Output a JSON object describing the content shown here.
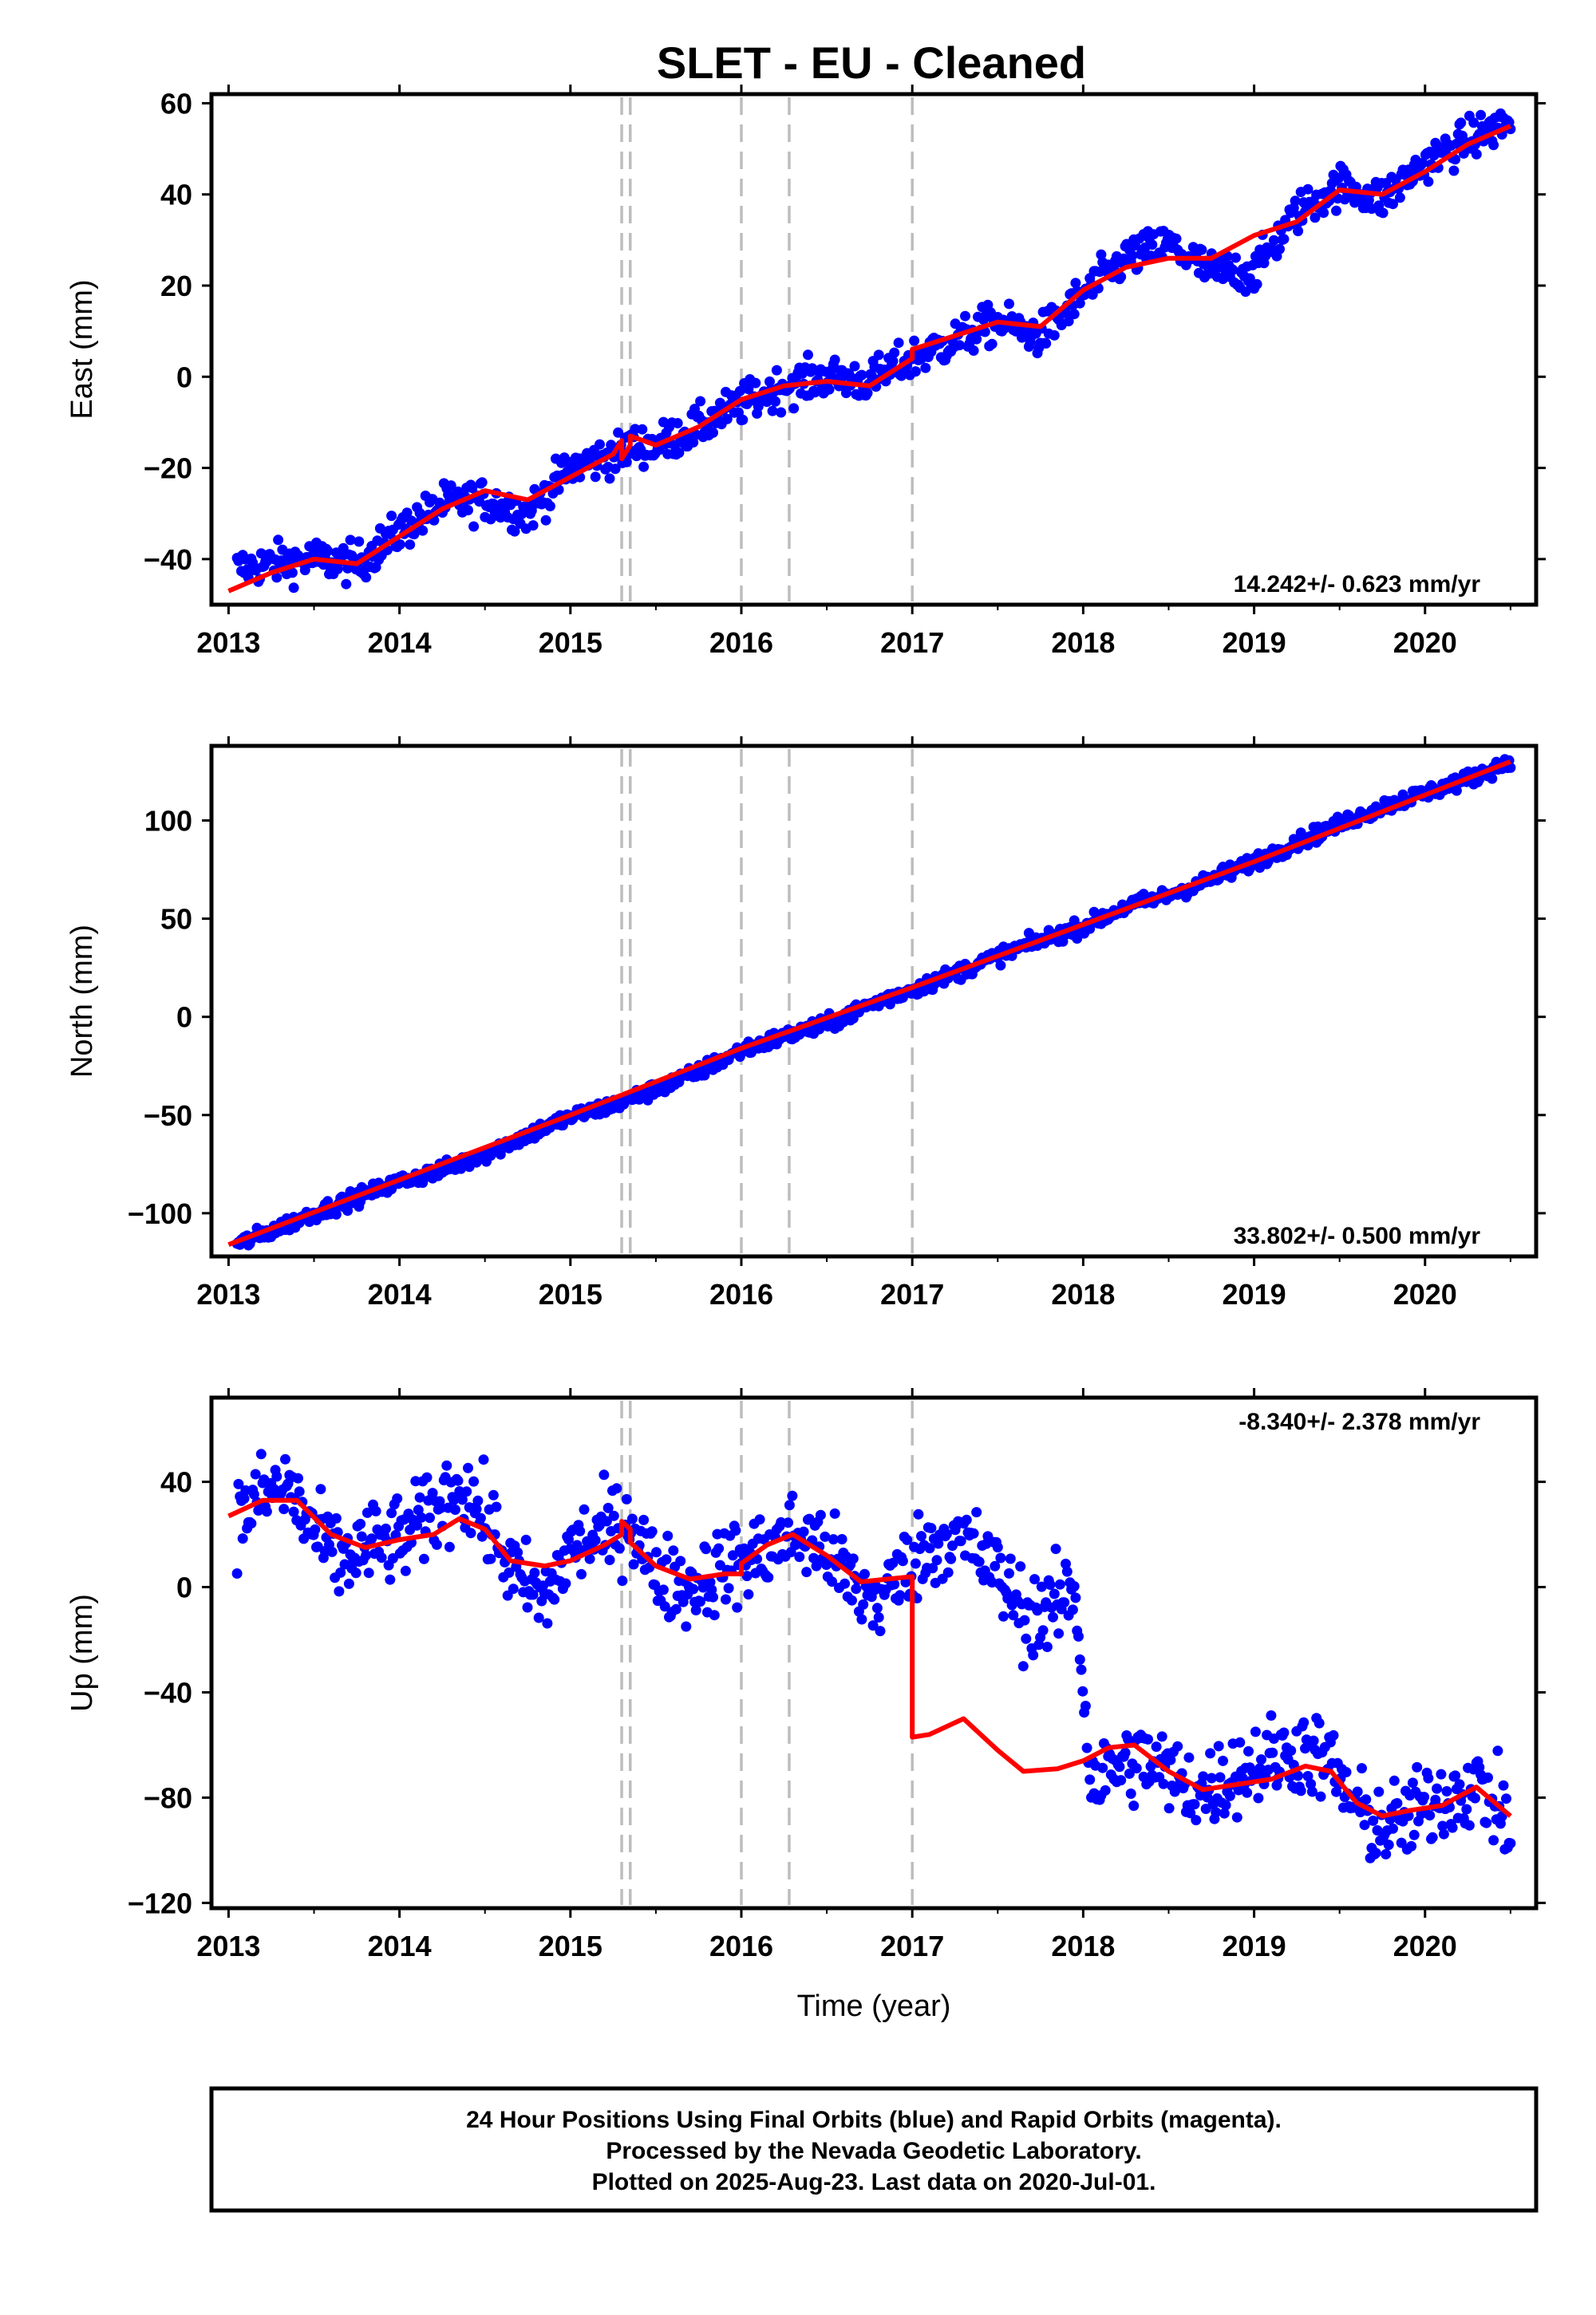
{
  "title": "SLET  - EU - Cleaned",
  "colors": {
    "points": "#0000ff",
    "model": "#ff0000",
    "steps": "#bdbdbd",
    "frame": "#000000"
  },
  "chart_data": [
    {
      "id": "east",
      "type": "scatter",
      "ylabel": "East (mm)",
      "xlim": [
        2012.9,
        2020.65
      ],
      "ylim": [
        -50,
        62
      ],
      "xticks": [
        "2013",
        "2014",
        "2015",
        "2016",
        "2017",
        "2018",
        "2019",
        "2020"
      ],
      "yticks": [
        -40,
        -20,
        0,
        20,
        40,
        60
      ],
      "rate_label": "14.242+/- 0.623 mm/yr",
      "rate_position": "bottom-right",
      "step_lines": [
        2015.3,
        2015.35,
        2016.0,
        2016.28,
        2017.0
      ],
      "series": [
        {
          "kind": "points",
          "x": [
            2013.05,
            2013.25,
            2013.5,
            2013.75,
            2014.0,
            2014.25,
            2014.5,
            2014.75,
            2015.0,
            2015.25,
            2015.3,
            2015.35,
            2015.5,
            2015.75,
            2016.0,
            2016.25,
            2016.5,
            2016.75,
            2017.0,
            2017.25,
            2017.5,
            2017.75,
            2018.0,
            2018.25,
            2018.5,
            2018.75,
            2019.0,
            2019.25,
            2019.5,
            2019.75,
            2020.0,
            2020.25,
            2020.5
          ],
          "y": [
            -42,
            -41,
            -40,
            -41,
            -34,
            -28,
            -27,
            -30,
            -20,
            -17,
            -17,
            -15,
            -15,
            -11,
            -6,
            -2,
            0,
            -1,
            4,
            8,
            12,
            9,
            18,
            26,
            29,
            23,
            23,
            36,
            42,
            39,
            47,
            52,
            56
          ]
        },
        {
          "kind": "model",
          "x": [
            2013.0,
            2013.25,
            2013.5,
            2013.75,
            2014.0,
            2014.25,
            2014.5,
            2014.75,
            2015.0,
            2015.25,
            2015.3,
            2015.3,
            2015.35,
            2015.35,
            2015.5,
            2015.75,
            2016.0,
            2016.25,
            2016.5,
            2016.75,
            2017.0,
            2017.0,
            2017.25,
            2017.5,
            2017.75,
            2018.0,
            2018.25,
            2018.5,
            2018.75,
            2019.0,
            2019.25,
            2019.5,
            2019.75,
            2020.0,
            2020.25,
            2020.5
          ],
          "y": [
            -47,
            -43,
            -40,
            -41,
            -35,
            -29,
            -25,
            -27,
            -22,
            -17,
            -14,
            -18,
            -15,
            -13,
            -15,
            -11,
            -5,
            -2,
            -1,
            -2,
            4,
            6,
            9,
            12,
            11,
            19,
            24,
            26,
            26,
            31,
            34,
            41,
            40,
            45,
            51,
            55
          ]
        }
      ]
    },
    {
      "id": "north",
      "type": "scatter",
      "ylabel": "North (mm)",
      "xlim": [
        2012.9,
        2020.65
      ],
      "ylim": [
        -122,
        138
      ],
      "xticks": [
        "2013",
        "2014",
        "2015",
        "2016",
        "2017",
        "2018",
        "2019",
        "2020"
      ],
      "yticks": [
        -100,
        -50,
        0,
        50,
        100
      ],
      "rate_label": "33.802+/- 0.500 mm/yr",
      "rate_position": "bottom-right",
      "step_lines": [
        2015.3,
        2015.35,
        2016.0,
        2016.28,
        2017.0
      ],
      "series": [
        {
          "kind": "points",
          "x": [
            2013.05,
            2013.25,
            2013.5,
            2013.75,
            2014.0,
            2014.25,
            2014.5,
            2014.75,
            2015.0,
            2015.25,
            2015.5,
            2015.75,
            2016.0,
            2016.25,
            2016.5,
            2016.75,
            2017.0,
            2017.25,
            2017.5,
            2017.75,
            2018.0,
            2018.25,
            2018.5,
            2018.75,
            2019.0,
            2019.25,
            2019.5,
            2019.75,
            2020.0,
            2020.25,
            2020.5
          ],
          "y": [
            -116,
            -109,
            -100,
            -92,
            -84,
            -78,
            -70,
            -60,
            -51,
            -45,
            -37,
            -28,
            -17,
            -10,
            -4,
            6,
            14,
            22,
            31,
            39,
            46,
            56,
            62,
            70,
            79,
            89,
            98,
            107,
            114,
            121,
            130
          ]
        },
        {
          "kind": "model",
          "x": [
            2013.0,
            2014.0,
            2015.0,
            2016.0,
            2017.0,
            2018.0,
            2019.0,
            2020.0,
            2020.5
          ],
          "y": [
            -116,
            -83,
            -50,
            -16,
            15,
            47,
            79,
            113,
            130
          ]
        }
      ]
    },
    {
      "id": "up",
      "type": "scatter",
      "ylabel": "Up (mm)",
      "xlabel": "Time (year)",
      "xlim": [
        2012.9,
        2020.65
      ],
      "ylim": [
        -122,
        72
      ],
      "xticks": [
        "2013",
        "2014",
        "2015",
        "2016",
        "2017",
        "2018",
        "2019",
        "2020"
      ],
      "yticks": [
        -120,
        -80,
        -40,
        0,
        40
      ],
      "rate_label": "-8.340+/- 2.378 mm/yr",
      "rate_position": "top-right",
      "step_lines": [
        2015.3,
        2015.35,
        2016.0,
        2016.28,
        2017.0
      ],
      "series": [
        {
          "kind": "points",
          "x": [
            2013.05,
            2013.2,
            2013.35,
            2013.5,
            2013.65,
            2013.8,
            2014.0,
            2014.2,
            2014.35,
            2014.55,
            2014.7,
            2014.85,
            2015.0,
            2015.2,
            2015.35,
            2015.5,
            2015.7,
            2015.9,
            2016.1,
            2016.3,
            2016.5,
            2016.65,
            2016.8,
            2017.0,
            2017.2,
            2017.35,
            2017.5,
            2017.65,
            2017.8,
            2017.95,
            2018.05,
            2018.2,
            2018.35,
            2018.5,
            2018.7,
            2018.9,
            2019.1,
            2019.3,
            2019.45,
            2019.6,
            2019.75,
            2019.9,
            2020.1,
            2020.3,
            2020.45,
            2020.5
          ],
          "y": [
            25,
            35,
            38,
            20,
            10,
            15,
            18,
            28,
            40,
            20,
            2,
            -5,
            15,
            20,
            26,
            5,
            0,
            8,
            12,
            20,
            15,
            0,
            -5,
            10,
            20,
            15,
            5,
            -10,
            -10,
            0,
            -75,
            -68,
            -65,
            -72,
            -78,
            -70,
            -65,
            -62,
            -68,
            -85,
            -92,
            -88,
            -80,
            -75,
            -85,
            -95
          ]
        },
        {
          "kind": "model",
          "x": [
            2013.0,
            2013.2,
            2013.4,
            2013.6,
            2013.8,
            2014.0,
            2014.2,
            2014.35,
            2014.5,
            2014.65,
            2014.85,
            2015.0,
            2015.2,
            2015.3,
            2015.3,
            2015.35,
            2015.35,
            2015.5,
            2015.7,
            2015.9,
            2016.0,
            2016.0,
            2016.15,
            2016.3,
            2016.5,
            2016.7,
            2016.85,
            2017.0,
            2017.0,
            2017.1,
            2017.3,
            2017.5,
            2017.65,
            2017.85,
            2018.0,
            2018.15,
            2018.3,
            2018.5,
            2018.7,
            2018.9,
            2019.1,
            2019.3,
            2019.45,
            2019.6,
            2019.75,
            2019.9,
            2020.1,
            2020.3,
            2020.5
          ],
          "y": [
            27,
            33,
            33,
            20,
            15,
            18,
            20,
            26,
            22,
            10,
            8,
            10,
            16,
            20,
            25,
            22,
            17,
            8,
            3,
            5,
            5,
            9,
            16,
            20,
            12,
            2,
            3,
            4,
            -57,
            -56,
            -50,
            -62,
            -70,
            -69,
            -66,
            -61,
            -60,
            -70,
            -77,
            -75,
            -73,
            -68,
            -70,
            -82,
            -87,
            -85,
            -83,
            -76,
            -87
          ]
        }
      ]
    }
  ],
  "footer": {
    "line1": "24 Hour Positions Using Final Orbits (blue) and Rapid Orbits (magenta).",
    "line2": "Processed by the Nevada Geodetic Laboratory.",
    "line3": "Plotted on 2025-Aug-23. Last data on 2020-Jul-01."
  }
}
